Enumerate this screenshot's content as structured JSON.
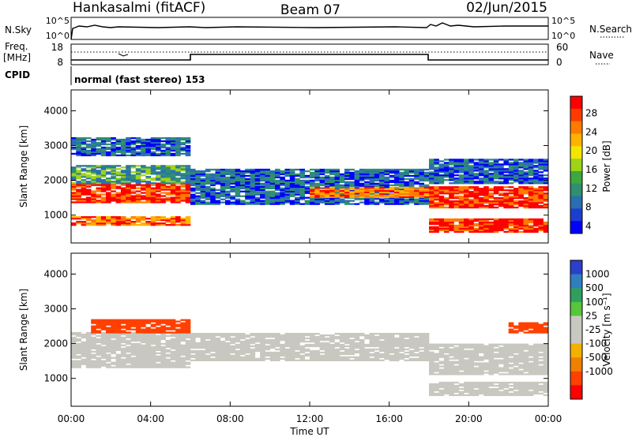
{
  "header": {
    "station": "Hankasalmi (fitACF)",
    "beam": "Beam 07",
    "date": "02/Jun/2015"
  },
  "noise_panel": {
    "left_label": "N.Sky",
    "right_label": "N.Search",
    "left_ticks": [
      "10^5",
      "10^0"
    ],
    "right_ticks": [
      "10^5",
      "10^0"
    ]
  },
  "freq_panel": {
    "left_label_1": "Freq.",
    "left_label_2": "[MHz]",
    "left_ticks": [
      "18",
      "8"
    ],
    "right_label": "Nave",
    "right_ticks": [
      "60",
      "0"
    ]
  },
  "cpid_panel": {
    "label": "CPID",
    "text": "normal (fast stereo) 153"
  },
  "power_colorbar": {
    "label": "Power [dB]",
    "ticks": [
      "28",
      "24",
      "20",
      "16",
      "12",
      "8",
      "4"
    ],
    "colors": [
      "#ff0000",
      "#ff3a00",
      "#ff7b00",
      "#ffb300",
      "#f2e600",
      "#9ed418",
      "#3ea83e",
      "#2f8f6f",
      "#2a6fb0",
      "#1a3fd0",
      "#0000ff"
    ]
  },
  "velocity_colorbar": {
    "label": "Velocity [m s⁻¹]",
    "ticks": [
      "1000",
      "500",
      "100",
      "25",
      "-25",
      "-100",
      "-500",
      "-1000"
    ],
    "colors": [
      "#2a3fcc",
      "#2f7fbf",
      "#2f9f5f",
      "#56c63b",
      "#c8c8c0",
      "#c8c8c0",
      "#f4b000",
      "#f08000",
      "#ff4000",
      "#ff0000"
    ]
  },
  "axes": {
    "ylabel": "Slant Range [km]",
    "xlabel": "Time UT",
    "y_ticks": [
      "4000",
      "3000",
      "2000",
      "1000"
    ],
    "x_ticks": [
      "00:00",
      "04:00",
      "08:00",
      "12:00",
      "16:00",
      "20:00",
      "00:00"
    ]
  },
  "chart_data": [
    {
      "type": "heatmap",
      "name": "Power [dB]",
      "x": "Time UT (hours)",
      "xlim": [
        0,
        24
      ],
      "ylim": [
        200,
        4600
      ],
      "bands": [
        {
          "t": [
            0,
            6
          ],
          "range": [
            1350,
            1900
          ],
          "level": 28
        },
        {
          "t": [
            0,
            6
          ],
          "range": [
            700,
            950
          ],
          "level": 24
        },
        {
          "t": [
            0,
            6
          ],
          "range": [
            1900,
            2400
          ],
          "level": 12
        },
        {
          "t": [
            0,
            6
          ],
          "range": [
            2700,
            3200
          ],
          "level": 8
        },
        {
          "t": [
            6,
            18
          ],
          "range": [
            1300,
            2300
          ],
          "level": 8
        },
        {
          "t": [
            12,
            18
          ],
          "range": [
            1500,
            1800
          ],
          "level": 24
        },
        {
          "t": [
            18,
            24
          ],
          "range": [
            1200,
            1800
          ],
          "level": 28
        },
        {
          "t": [
            18,
            24
          ],
          "range": [
            500,
            900
          ],
          "level": 28
        },
        {
          "t": [
            18,
            24
          ],
          "range": [
            1900,
            2600
          ],
          "level": 8
        }
      ]
    },
    {
      "type": "heatmap",
      "name": "Velocity [m s⁻¹]",
      "x": "Time UT (hours)",
      "xlim": [
        0,
        24
      ],
      "ylim": [
        200,
        4600
      ],
      "bands": [
        {
          "t": [
            0,
            6
          ],
          "range": [
            1300,
            2300
          ],
          "velocity": 0
        },
        {
          "t": [
            1,
            6
          ],
          "range": [
            2300,
            2700
          ],
          "velocity": -500
        },
        {
          "t": [
            6,
            18
          ],
          "range": [
            1500,
            2300
          ],
          "velocity": 0
        },
        {
          "t": [
            18,
            24
          ],
          "range": [
            1100,
            2000
          ],
          "velocity": 0
        },
        {
          "t": [
            18,
            24
          ],
          "range": [
            500,
            900
          ],
          "velocity": 0
        },
        {
          "t": [
            22,
            24
          ],
          "range": [
            2300,
            2600
          ],
          "velocity": -500
        }
      ]
    }
  ]
}
